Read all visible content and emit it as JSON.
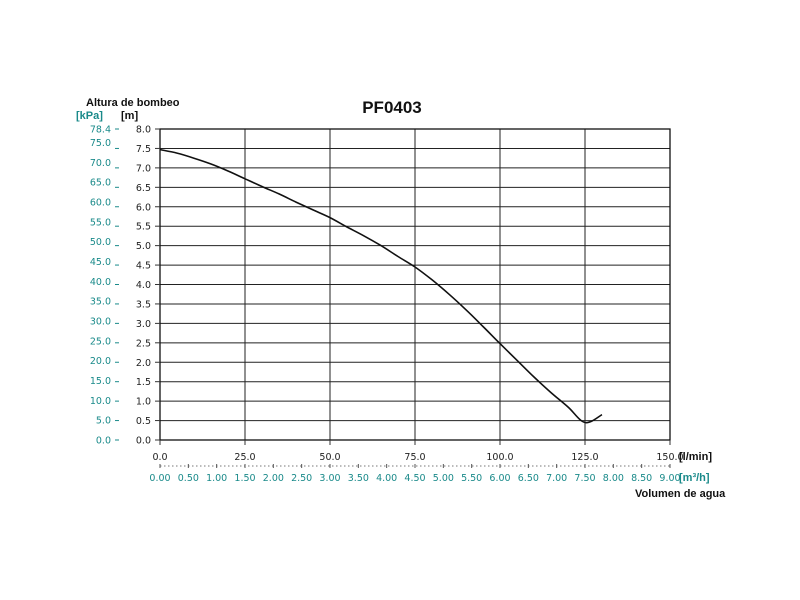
{
  "chart_data": {
    "type": "line",
    "title": "PF0403",
    "y_title": "Altura de bombeo",
    "y_unit_m": "[m]",
    "y_unit_kpa": "[kPa]",
    "x_title": "Volumen de agua",
    "x_unit_lmin": "[l/min]",
    "x_unit_m3h": "[m³/h]",
    "y_ticks_m": [
      "0.0",
      "0.5",
      "1.0",
      "1.5",
      "2.0",
      "2.5",
      "3.0",
      "3.5",
      "4.0",
      "4.5",
      "5.0",
      "5.5",
      "6.0",
      "6.5",
      "7.0",
      "7.5",
      "8.0"
    ],
    "y_ticks_kpa": [
      "0.0",
      "5.0",
      "10.0",
      "15.0",
      "20.0",
      "25.0",
      "30.0",
      "35.0",
      "40.0",
      "45.0",
      "50.0",
      "55.0",
      "60.0",
      "65.0",
      "70.0",
      "75.0",
      "78.4"
    ],
    "x_ticks_lmin": [
      "0.0",
      "25.0",
      "50.0",
      "75.0",
      "100.0",
      "125.0",
      "150.0"
    ],
    "x_ticks_m3h": [
      "0.00",
      "0.50",
      "1.00",
      "1.50",
      "2.00",
      "2.50",
      "3.00",
      "3.50",
      "4.00",
      "4.50",
      "5.00",
      "5.50",
      "6.00",
      "6.50",
      "7.00",
      "7.50",
      "8.00",
      "8.50",
      "9.00"
    ],
    "xlim": [
      0,
      150
    ],
    "ylim": [
      0,
      8
    ],
    "grid": true,
    "series": [
      {
        "color": "#111111",
        "x": [
          0,
          5,
          10,
          15,
          20,
          25,
          30,
          35,
          40,
          45,
          50,
          55,
          60,
          65,
          70,
          75,
          80,
          85,
          90,
          95,
          100,
          105,
          110,
          115,
          120,
          125,
          130
        ],
        "y": [
          7.47,
          7.38,
          7.25,
          7.1,
          6.92,
          6.72,
          6.52,
          6.33,
          6.12,
          5.92,
          5.72,
          5.48,
          5.25,
          5.0,
          4.72,
          4.45,
          4.12,
          3.75,
          3.35,
          2.92,
          2.48,
          2.05,
          1.62,
          1.22,
          0.85,
          0.45,
          0.65
        ]
      }
    ]
  }
}
